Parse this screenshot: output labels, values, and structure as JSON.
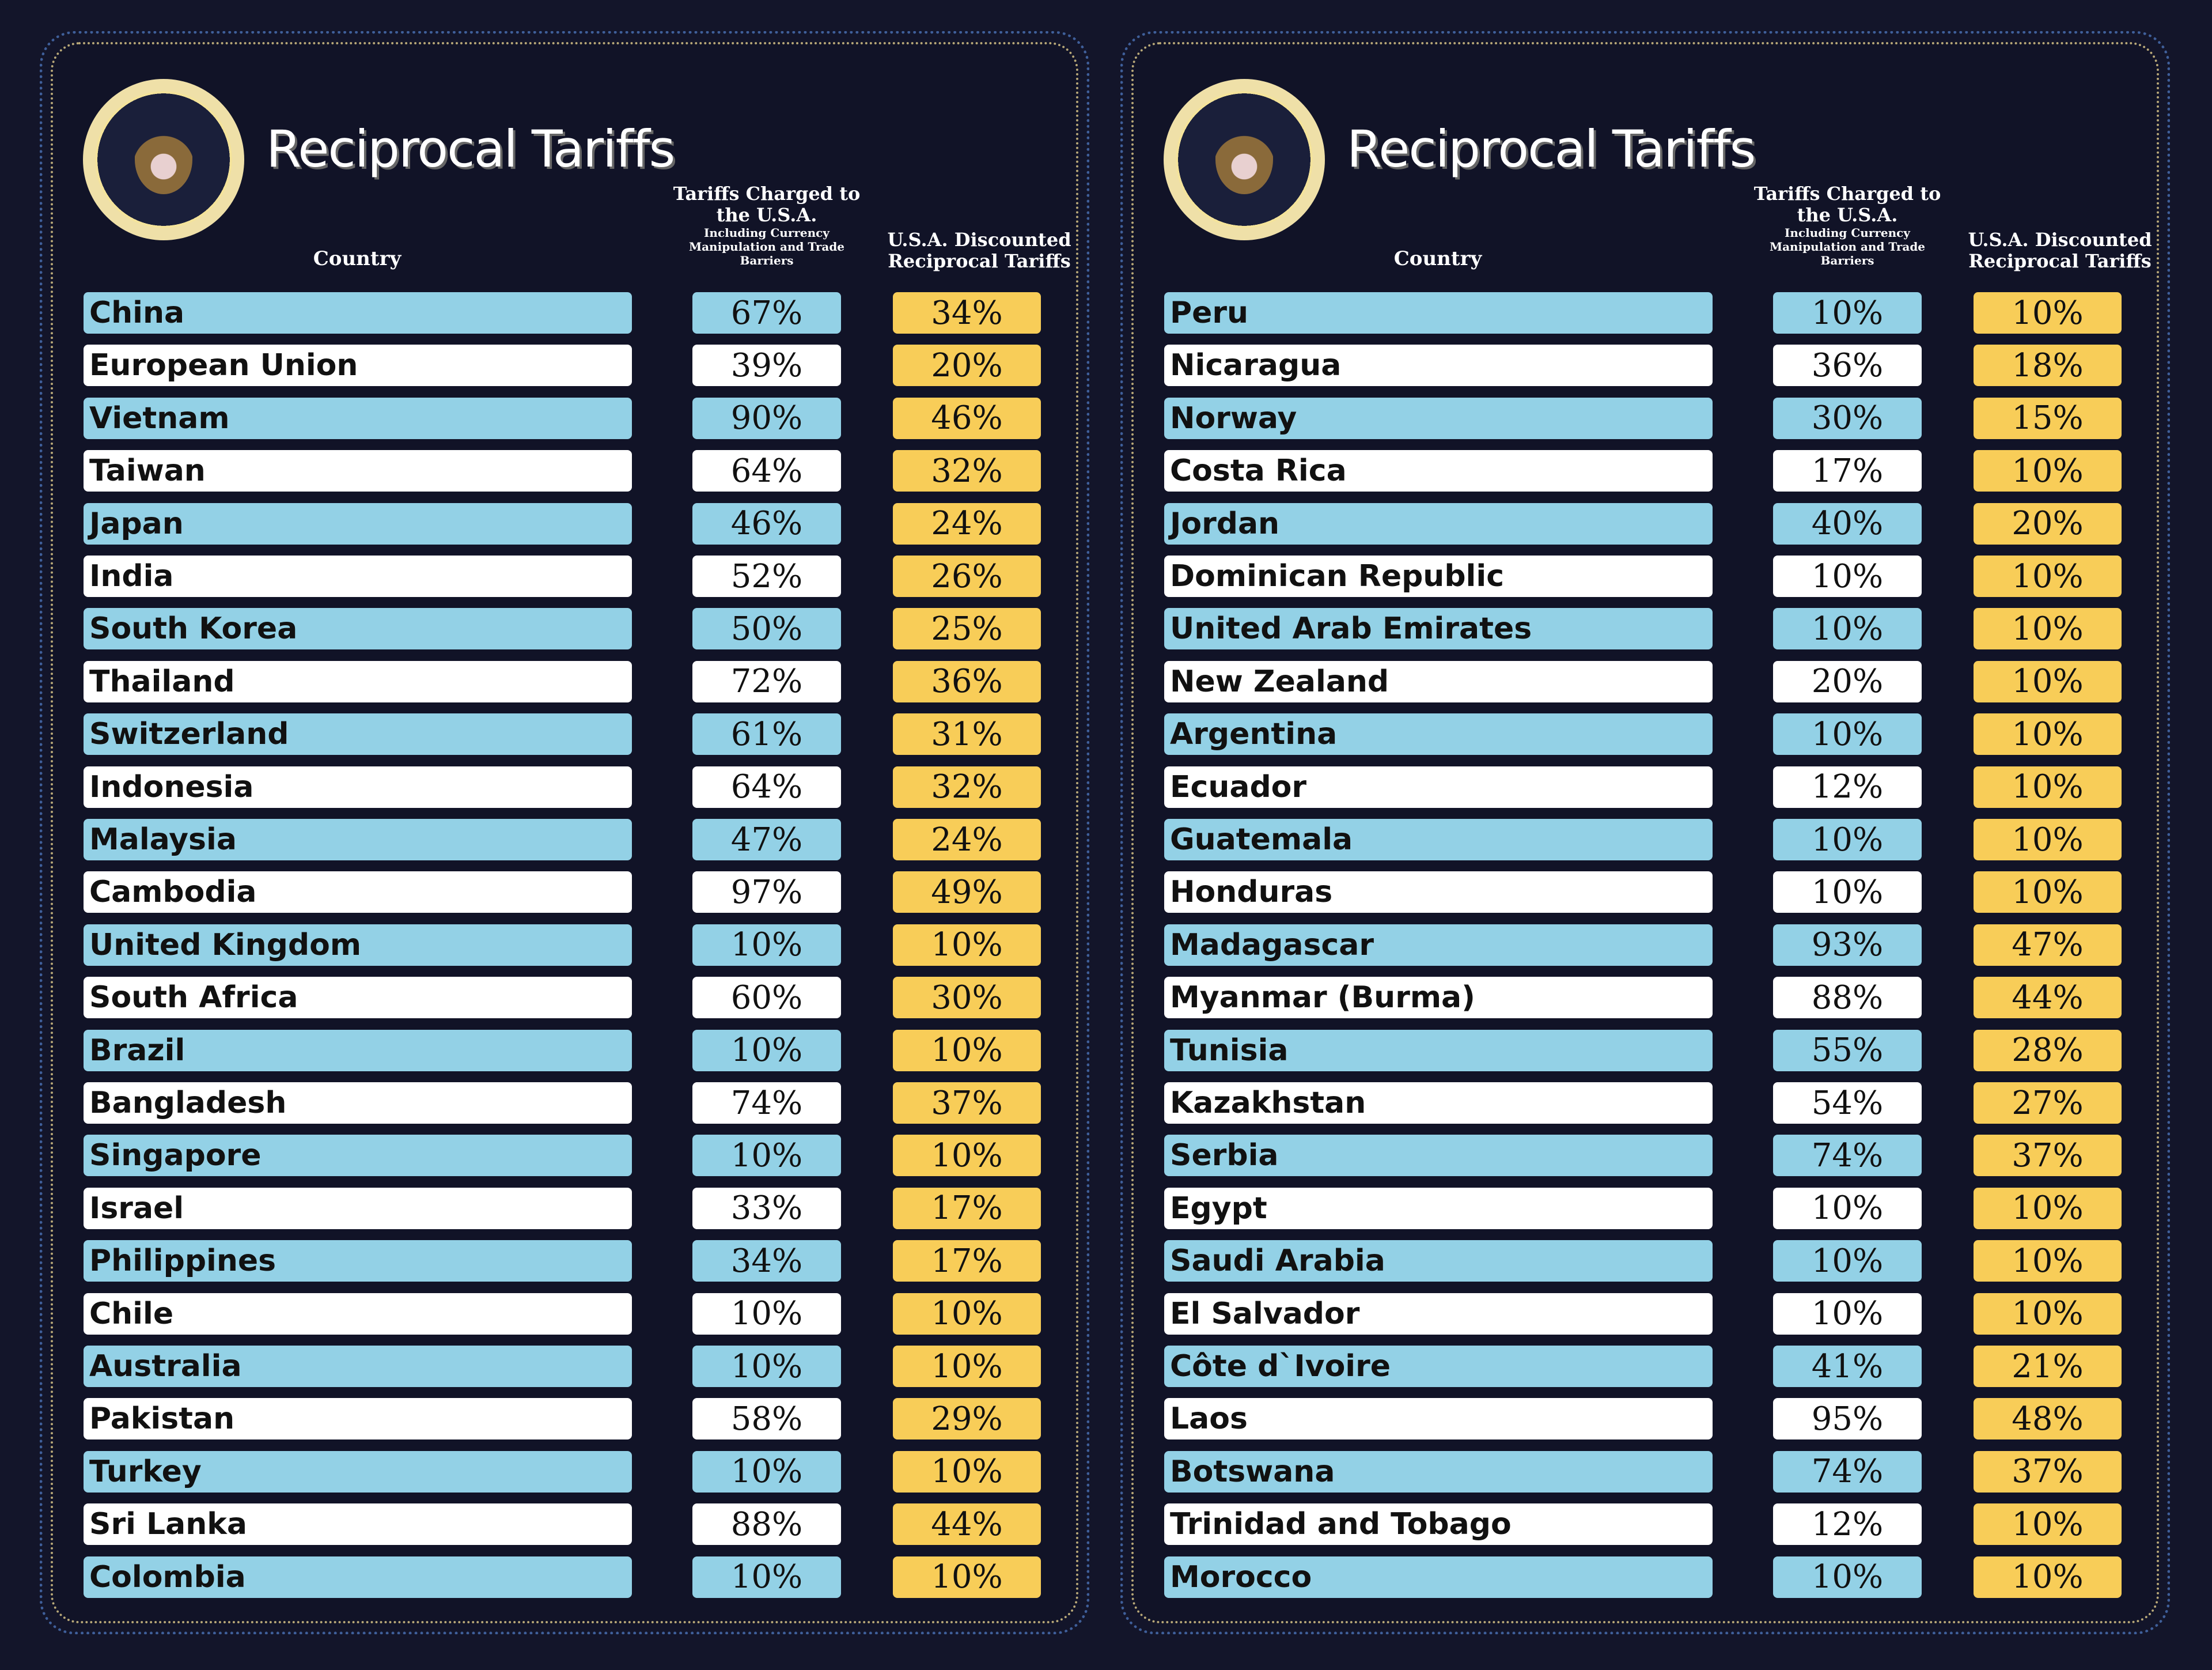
{
  "colors": {
    "background": "#13152a",
    "row_blue": "#93d1e6",
    "row_white": "#ffffff",
    "discount_yellow": "#f8cd58"
  },
  "panels": [
    {
      "seal_text": "SEAL OF THE PRESIDENT OF THE UNITED STATES",
      "title": "Reciprocal Tariffs",
      "headers": {
        "country": "Country",
        "charged": "Tariffs Charged to the U.S.A.",
        "charged_note": "Including Currency Manipulation and Trade Barriers",
        "discounted": "U.S.A. Discounted Reciprocal Tariffs"
      },
      "rows": [
        {
          "country": "China",
          "charged": "67%",
          "discounted": "34%"
        },
        {
          "country": "European Union",
          "charged": "39%",
          "discounted": "20%"
        },
        {
          "country": "Vietnam",
          "charged": "90%",
          "discounted": "46%"
        },
        {
          "country": "Taiwan",
          "charged": "64%",
          "discounted": "32%"
        },
        {
          "country": "Japan",
          "charged": "46%",
          "discounted": "24%"
        },
        {
          "country": "India",
          "charged": "52%",
          "discounted": "26%"
        },
        {
          "country": "South Korea",
          "charged": "50%",
          "discounted": "25%"
        },
        {
          "country": "Thailand",
          "charged": "72%",
          "discounted": "36%"
        },
        {
          "country": "Switzerland",
          "charged": "61%",
          "discounted": "31%"
        },
        {
          "country": "Indonesia",
          "charged": "64%",
          "discounted": "32%"
        },
        {
          "country": "Malaysia",
          "charged": "47%",
          "discounted": "24%"
        },
        {
          "country": "Cambodia",
          "charged": "97%",
          "discounted": "49%"
        },
        {
          "country": "United Kingdom",
          "charged": "10%",
          "discounted": "10%"
        },
        {
          "country": "South Africa",
          "charged": "60%",
          "discounted": "30%"
        },
        {
          "country": "Brazil",
          "charged": "10%",
          "discounted": "10%"
        },
        {
          "country": "Bangladesh",
          "charged": "74%",
          "discounted": "37%"
        },
        {
          "country": "Singapore",
          "charged": "10%",
          "discounted": "10%"
        },
        {
          "country": "Israel",
          "charged": "33%",
          "discounted": "17%"
        },
        {
          "country": "Philippines",
          "charged": "34%",
          "discounted": "17%"
        },
        {
          "country": "Chile",
          "charged": "10%",
          "discounted": "10%"
        },
        {
          "country": "Australia",
          "charged": "10%",
          "discounted": "10%"
        },
        {
          "country": "Pakistan",
          "charged": "58%",
          "discounted": "29%"
        },
        {
          "country": "Turkey",
          "charged": "10%",
          "discounted": "10%"
        },
        {
          "country": "Sri Lanka",
          "charged": "88%",
          "discounted": "44%"
        },
        {
          "country": "Colombia",
          "charged": "10%",
          "discounted": "10%"
        }
      ]
    },
    {
      "seal_text": "SEAL OF THE PRESIDENT OF THE UNITED STATES",
      "title": "Reciprocal Tariffs",
      "headers": {
        "country": "Country",
        "charged": "Tariffs Charged to the U.S.A.",
        "charged_note": "Including Currency Manipulation and Trade Barriers",
        "discounted": "U.S.A. Discounted Reciprocal Tariffs"
      },
      "rows": [
        {
          "country": "Peru",
          "charged": "10%",
          "discounted": "10%"
        },
        {
          "country": "Nicaragua",
          "charged": "36%",
          "discounted": "18%"
        },
        {
          "country": "Norway",
          "charged": "30%",
          "discounted": "15%"
        },
        {
          "country": "Costa Rica",
          "charged": "17%",
          "discounted": "10%"
        },
        {
          "country": "Jordan",
          "charged": "40%",
          "discounted": "20%"
        },
        {
          "country": "Dominican Republic",
          "charged": "10%",
          "discounted": "10%"
        },
        {
          "country": "United Arab Emirates",
          "charged": "10%",
          "discounted": "10%"
        },
        {
          "country": "New Zealand",
          "charged": "20%",
          "discounted": "10%"
        },
        {
          "country": "Argentina",
          "charged": "10%",
          "discounted": "10%"
        },
        {
          "country": "Ecuador",
          "charged": "12%",
          "discounted": "10%"
        },
        {
          "country": "Guatemala",
          "charged": "10%",
          "discounted": "10%"
        },
        {
          "country": "Honduras",
          "charged": "10%",
          "discounted": "10%"
        },
        {
          "country": "Madagascar",
          "charged": "93%",
          "discounted": "47%"
        },
        {
          "country": "Myanmar (Burma)",
          "charged": "88%",
          "discounted": "44%"
        },
        {
          "country": "Tunisia",
          "charged": "55%",
          "discounted": "28%"
        },
        {
          "country": "Kazakhstan",
          "charged": "54%",
          "discounted": "27%"
        },
        {
          "country": "Serbia",
          "charged": "74%",
          "discounted": "37%"
        },
        {
          "country": "Egypt",
          "charged": "10%",
          "discounted": "10%"
        },
        {
          "country": "Saudi Arabia",
          "charged": "10%",
          "discounted": "10%"
        },
        {
          "country": "El Salvador",
          "charged": "10%",
          "discounted": "10%"
        },
        {
          "country": "Côte d`Ivoire",
          "charged": "41%",
          "discounted": "21%"
        },
        {
          "country": "Laos",
          "charged": "95%",
          "discounted": "48%"
        },
        {
          "country": "Botswana",
          "charged": "74%",
          "discounted": "37%"
        },
        {
          "country": "Trinidad and Tobago",
          "charged": "12%",
          "discounted": "10%"
        },
        {
          "country": "Morocco",
          "charged": "10%",
          "discounted": "10%"
        }
      ]
    }
  ]
}
